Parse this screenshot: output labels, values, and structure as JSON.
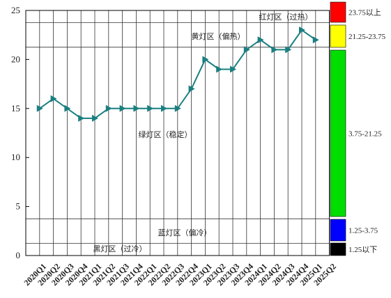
{
  "chart_data": {
    "type": "line",
    "categories": [
      "2020Q1",
      "2020Q2",
      "2020Q3",
      "2020Q4",
      "2021Q1",
      "2021Q2",
      "2021Q3",
      "2021Q4",
      "2022Q1",
      "2022Q2",
      "2022Q3",
      "2022Q4",
      "2023Q1",
      "2023Q2",
      "2023Q3",
      "2023Q4",
      "2024Q1",
      "2024Q2",
      "2024Q3",
      "2024Q4",
      "2025Q1",
      "2025Q2"
    ],
    "values": [
      15,
      16,
      15,
      14,
      14,
      15,
      15,
      15,
      15,
      15,
      15,
      17,
      20,
      19,
      19,
      21,
      22,
      21,
      21,
      23,
      22,
      null
    ],
    "color": "#1a7f80",
    "ylim": [
      0,
      25
    ],
    "yticks": [
      0,
      5,
      10,
      15,
      20,
      25
    ],
    "grid": true,
    "thresholds": [
      23.75,
      21.25,
      3.75,
      1.25
    ],
    "zones": [
      {
        "label": "红灯区（过热）",
        "legend_label": "23.75以上",
        "color": "#ff0000"
      },
      {
        "label": "黄灯区（偏热）",
        "legend_label": "21.25-23.75",
        "color": "#ffff00"
      },
      {
        "label": "绿灯区（稳定）",
        "legend_label": "3.75-21.25",
        "color": "#00dd00"
      },
      {
        "label": "蓝灯区（偏冷）",
        "legend_label": "1.25-3.75",
        "color": "#0000ff"
      },
      {
        "label": "黑灯区（过冷）",
        "legend_label": "1.25以下",
        "color": "#000000"
      }
    ]
  }
}
